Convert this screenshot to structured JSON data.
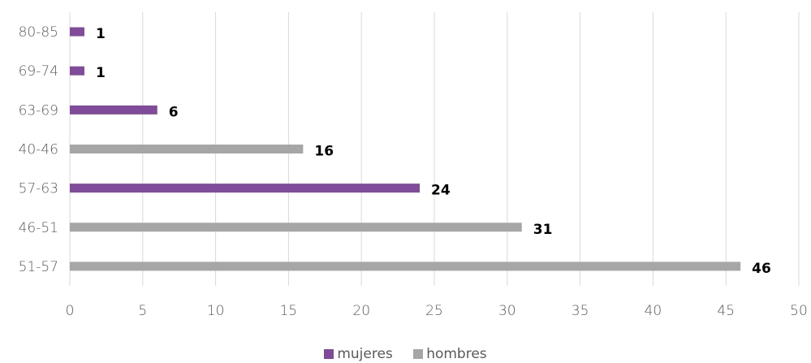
{
  "chart_data": {
    "type": "bar",
    "orientation": "horizontal",
    "categories": [
      "80-85",
      "69-74",
      "63-69",
      "40-46",
      "57-63",
      "46-51",
      "51-57"
    ],
    "values": [
      1,
      1,
      6,
      16,
      24,
      31,
      46
    ],
    "bar_series": [
      "mujeres",
      "mujeres",
      "mujeres",
      "hombres",
      "mujeres",
      "hombres",
      "hombres"
    ],
    "data_labels": [
      "1",
      "1",
      "6",
      "16",
      "24",
      "31",
      "46"
    ],
    "xlim": [
      0,
      50
    ],
    "xticks": [
      0,
      5,
      10,
      15,
      20,
      25,
      30,
      35,
      40,
      45,
      50
    ],
    "grid": "vertical",
    "legend_position": "bottom",
    "series": [
      {
        "name": "mujeres",
        "color": "#7f4b9a"
      },
      {
        "name": "hombres",
        "color": "#a6a6a6"
      }
    ],
    "title": "",
    "xlabel": "",
    "ylabel": ""
  }
}
